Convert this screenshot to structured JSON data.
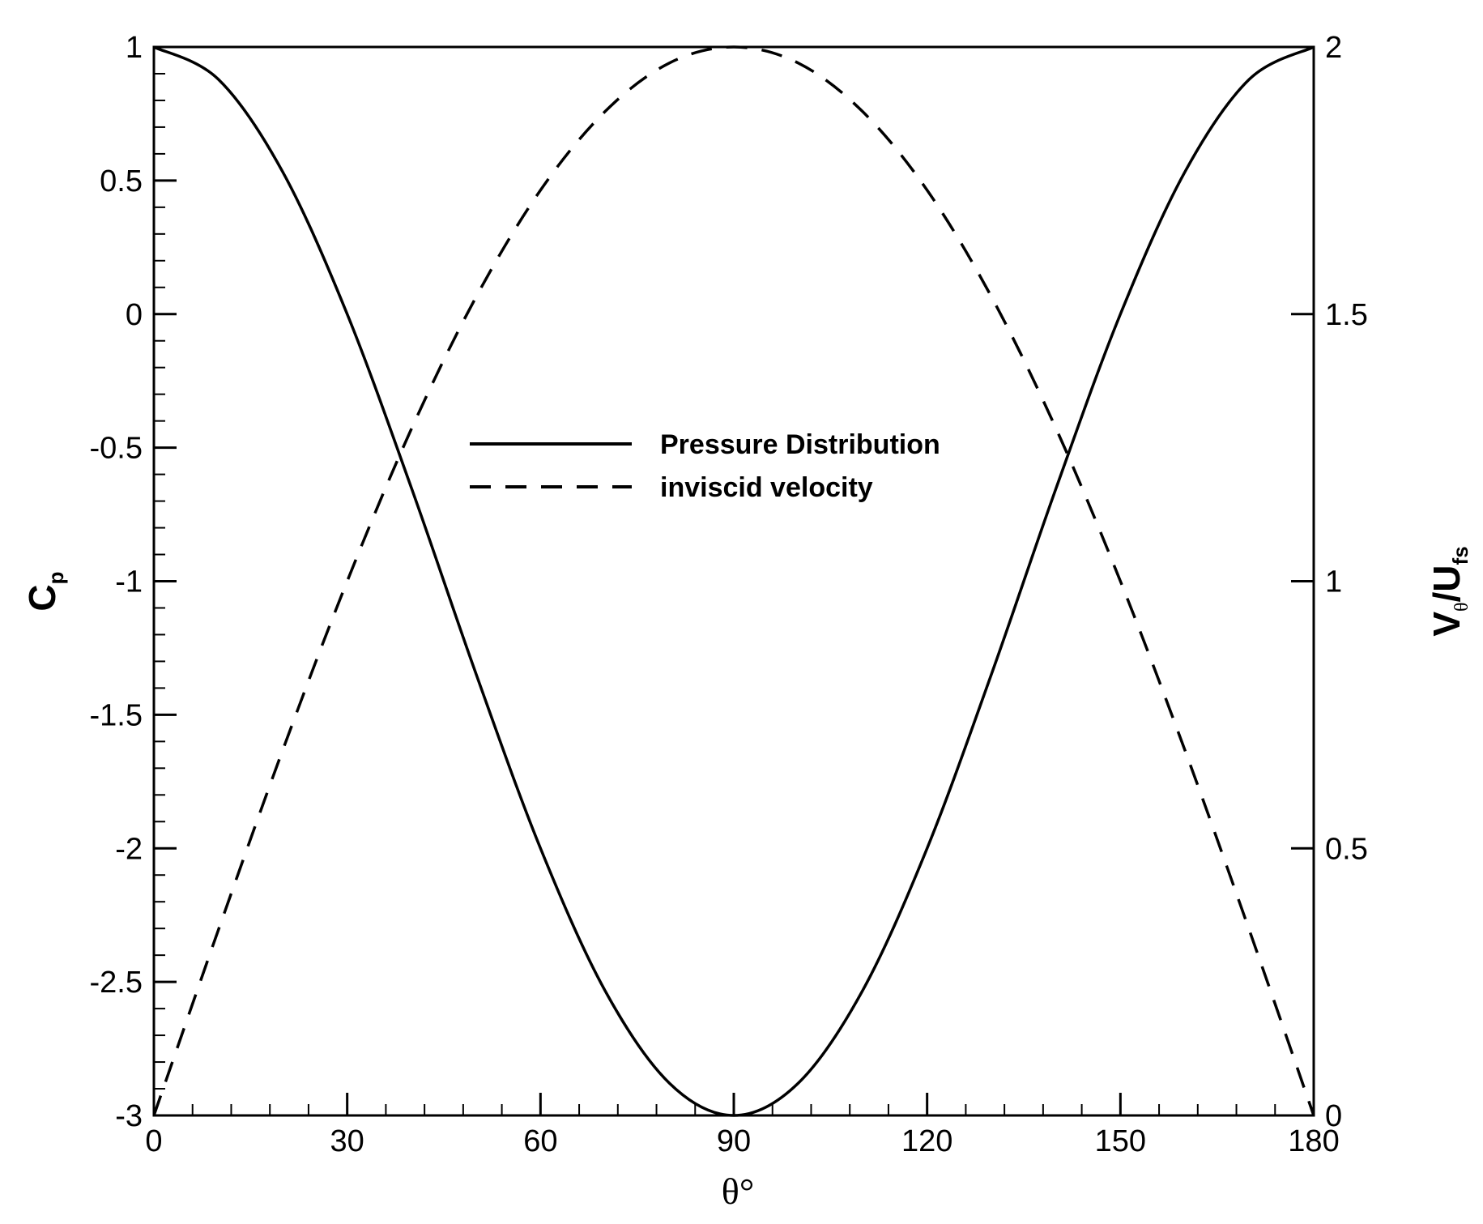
{
  "chart_data": {
    "type": "line",
    "title": "",
    "xlabel": "θ°",
    "ylabel_left": {
      "main": "C",
      "sub": "p"
    },
    "ylabel_right": {
      "parts": [
        "V",
        "θ",
        "/U",
        "fs"
      ]
    },
    "xlim": [
      0,
      180
    ],
    "ylim_left": [
      -3,
      1
    ],
    "ylim_right": [
      0,
      2
    ],
    "x_ticks": [
      0,
      30,
      60,
      90,
      120,
      150,
      180
    ],
    "x_tick_labels": [
      "0",
      "30",
      "60",
      "90",
      "120",
      "150",
      "180"
    ],
    "y_left_ticks": [
      1,
      0.5,
      0,
      -0.5,
      -1,
      -1.5,
      -2,
      -2.5,
      -3
    ],
    "y_left_tick_labels": [
      "1",
      "0.5",
      "0",
      "-0.5",
      "-1",
      "-1.5",
      "-2",
      "-2.5",
      "-3"
    ],
    "y_right_ticks": [
      2,
      1.5,
      1,
      0.5,
      0
    ],
    "y_right_tick_labels": [
      "2",
      "1.5",
      "1",
      "0.5",
      "0"
    ],
    "x_minor_step": 6,
    "y_left_minor_step": 0.1,
    "grid": false,
    "legend_placement": "center",
    "series": [
      {
        "name": "Pressure Distribution",
        "axis": "left",
        "style": "solid",
        "color": "#000000",
        "x": [
          0,
          10,
          20,
          30,
          40,
          50,
          60,
          70,
          80,
          90,
          100,
          110,
          120,
          130,
          140,
          150,
          160,
          170,
          180
        ],
        "y": [
          1,
          0.879,
          0.532,
          0,
          -0.653,
          -1.347,
          -2.0,
          -2.532,
          -2.879,
          -3,
          -2.879,
          -2.532,
          -2.0,
          -1.347,
          -0.653,
          0,
          0.532,
          0.879,
          1
        ]
      },
      {
        "name": "inviscid velocity",
        "axis": "right",
        "style": "dashed",
        "color": "#000000",
        "x": [
          0,
          10,
          20,
          30,
          40,
          50,
          60,
          70,
          80,
          90,
          100,
          110,
          120,
          130,
          140,
          150,
          160,
          170,
          180
        ],
        "y": [
          0,
          0.347,
          0.684,
          1.0,
          1.286,
          1.532,
          1.732,
          1.879,
          1.97,
          2.0,
          1.97,
          1.879,
          1.732,
          1.532,
          1.286,
          1.0,
          0.684,
          0.347,
          0
        ]
      }
    ]
  }
}
